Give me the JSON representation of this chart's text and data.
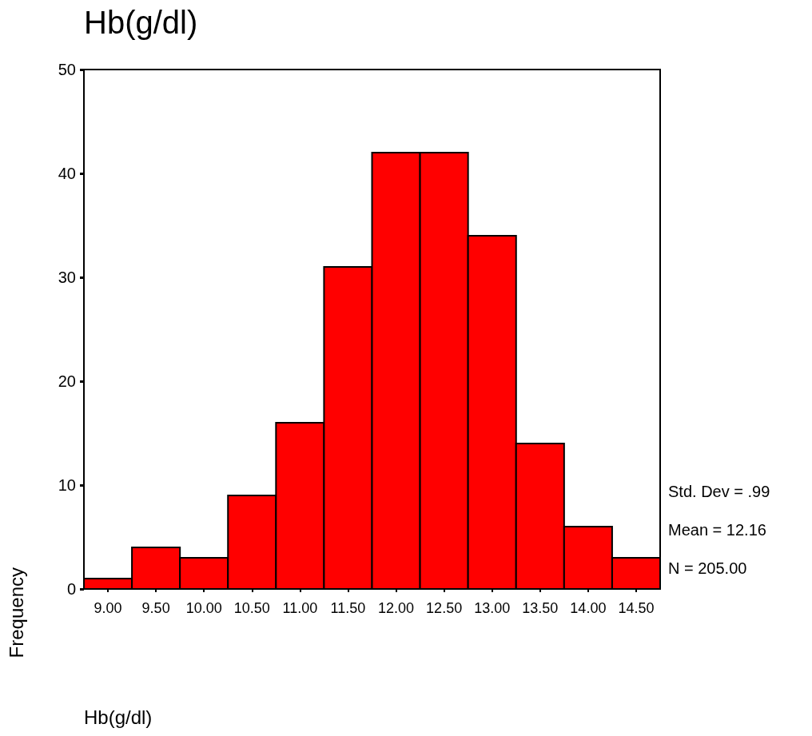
{
  "chart_data": {
    "type": "histogram",
    "title": "Hb(g/dl)",
    "xlabel": "Hb(g/dl)",
    "ylabel": "Frequency",
    "bins": [
      8.75,
      9.25,
      9.75,
      10.25,
      10.75,
      11.25,
      11.75,
      12.25,
      12.75,
      13.25,
      13.75,
      14.25,
      14.75
    ],
    "values": [
      1,
      4,
      3,
      9,
      16,
      31,
      42,
      42,
      34,
      14,
      6,
      3
    ],
    "color": "#ff0000",
    "xlim": [
      8.75,
      14.75
    ],
    "xticks": [
      {
        "value": 9,
        "label": "9.00"
      },
      {
        "value": 9.5,
        "label": "9.50"
      },
      {
        "value": 10,
        "label": "10.00"
      },
      {
        "value": 10.5,
        "label": "10.50"
      },
      {
        "value": 11,
        "label": "11.00"
      },
      {
        "value": 11.5,
        "label": "11.50"
      },
      {
        "value": 12,
        "label": "12.00"
      },
      {
        "value": 12.5,
        "label": "12.50"
      },
      {
        "value": 13,
        "label": "13.00"
      },
      {
        "value": 13.5,
        "label": "13.50"
      },
      {
        "value": 14,
        "label": "14.00"
      },
      {
        "value": 14.5,
        "label": "14.50"
      }
    ],
    "ylim": [
      0,
      50
    ],
    "yticks": [
      0,
      10,
      20,
      30,
      40,
      50
    ],
    "grid": false,
    "annotations": [
      "Std. Dev = .99",
      "Mean = 12.16",
      "N = 205.00"
    ]
  }
}
